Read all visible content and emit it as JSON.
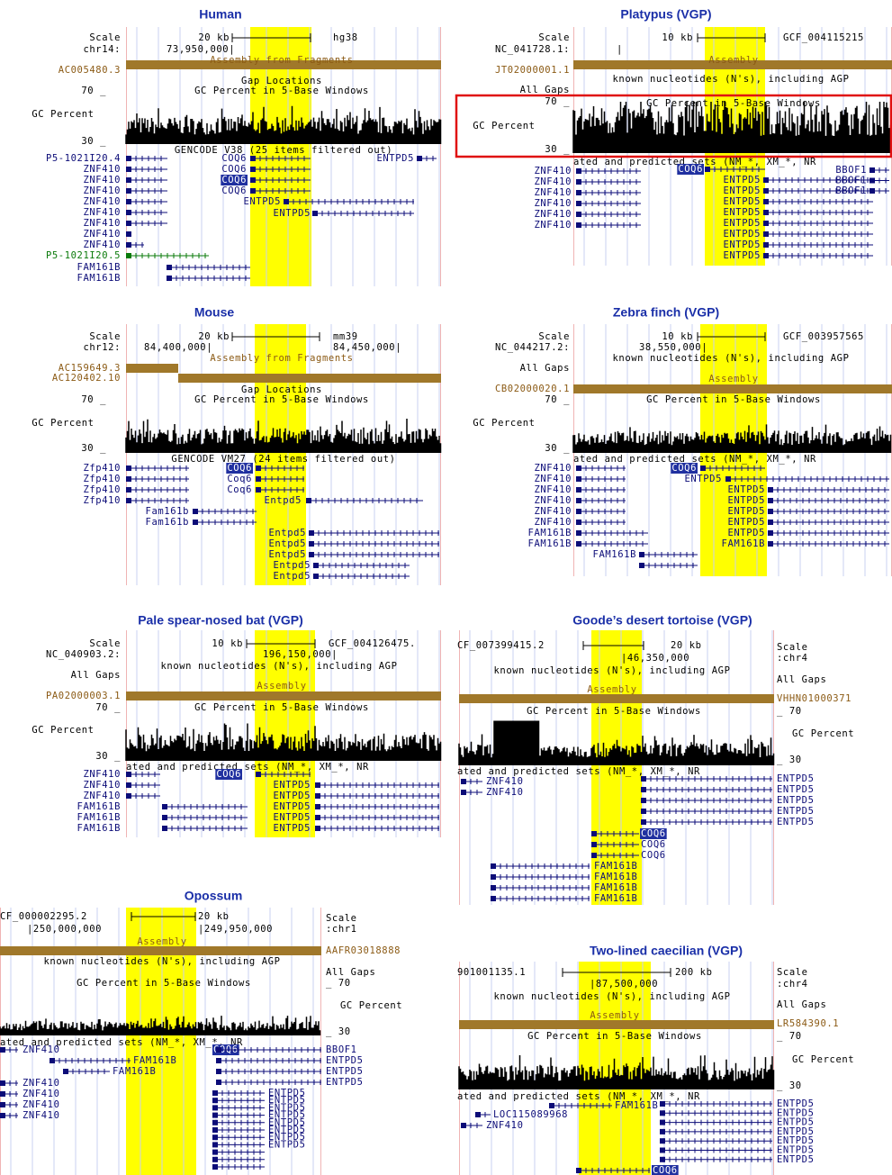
{
  "panels": [
    {
      "title": "Human",
      "texts": [
        "Scale",
        "chr14:",
        "20 kb",
        "hg38",
        "73,950,000|",
        "AC005480.3",
        "Assembly from Fragments",
        "Gap Locations",
        "GC Percent in 5-Base Windows",
        "70 _",
        "GC Percent",
        "30 _",
        "GENCODE V38 (25 items filtered out)",
        "P5-1021I20.4",
        "ZNF410",
        "ZNF410",
        "ZNF410",
        "ZNF410",
        "ZNF410",
        "ZNF410",
        "ZNF410",
        "ZNF410",
        "P5-1021I20.5",
        "FAM161B",
        "FAM161B",
        "COQ6",
        "COQ6",
        "COQ6",
        "COQ6",
        "ENTPD5",
        "ENTPD5",
        "ENTPD5"
      ]
    },
    {
      "title": "Platypus (VGP)",
      "texts": [
        "Scale",
        "NC_041728.1:",
        "10 kb",
        "GCF_004115215",
        "|",
        "JT02000001.1",
        "Assembly",
        "known nucleotides (N's), including AGP",
        "All Gaps",
        "70 _",
        "GC Percent in 5-Base Windows",
        "GC Percent",
        "30 _",
        "ated and predicted sets (NM_*, XM_*, NR",
        "ZNF410",
        "ZNF410",
        "ZNF410",
        "ZNF410",
        "ZNF410",
        "ZNF410",
        "COQ6",
        "ENTPD5",
        "ENTPD5",
        "ENTPD5",
        "ENTPD5",
        "ENTPD5",
        "ENTPD5",
        "ENTPD5",
        "ENTPD5",
        "BBOF1",
        "BBOF1",
        "BBOF1"
      ]
    },
    {
      "title": "Mouse",
      "texts": [
        "Scale",
        "chr12:",
        "20 kb",
        "mm39",
        "84,400,000|",
        "84,450,000|",
        "AC159649.3",
        "AC120402.10",
        "Assembly from Fragments",
        "Gap Locations",
        "GC Percent in 5-Base Windows",
        "70 _",
        "GC Percent",
        "30 _",
        "GENCODE VM27 (24 items filtered out)",
        "Zfp410",
        "Zfp410",
        "Zfp410",
        "Zfp410",
        "COQ6",
        "Coq6",
        "Coq6",
        "Fam161b",
        "Fam161b",
        "Entpd5",
        "Entpd5",
        "Entpd5",
        "Entpd5",
        "Entpd5",
        "Entpd5"
      ]
    },
    {
      "title": "Zebra finch (VGP)",
      "texts": [
        "Scale",
        "NC_044217.2:",
        "10 kb",
        "GCF_003957565",
        "38,550,000|",
        "known nucleotides (N's), including AGP",
        "All Gaps",
        "Assembly",
        "CB02000020.1",
        "70 _",
        "GC Percent in 5-Base Windows",
        "GC Percent",
        "30 _",
        "ated and predicted sets (NM_*, XM_*, NR",
        "ZNF410",
        "ZNF410",
        "ZNF410",
        "ZNF410",
        "ZNF410",
        "ZNF410",
        "FAM161B",
        "FAM161B",
        "COQ6",
        "ENTPD5",
        "ENTPD5",
        "ENTPD5",
        "ENTPD5",
        "ENTPD5",
        "ENTPD5",
        "FAM161B",
        "FAM161B"
      ]
    },
    {
      "title": "Pale spear-nosed bat (VGP)",
      "texts": [
        "Scale",
        "NC_040903.2:",
        "10 kb",
        "GCF_004126475.",
        "196,150,000|",
        "known nucleotides (N's), including AGP",
        "All Gaps",
        "Assembly",
        "PA02000003.1",
        "70 _",
        "GC Percent in 5-Base Windows",
        "GC Percent",
        "30 _",
        "ated and predicted sets (NM_*, XM_*, NR",
        "ZNF410",
        "ZNF410",
        "ZNF410",
        "FAM161B",
        "FAM161B",
        "FAM161B",
        "COQ6",
        "ENTPD5",
        "ENTPD5",
        "ENTPD5",
        "ENTPD5",
        "ENTPD5"
      ]
    },
    {
      "title": "Goode’s desert tortoise (VGP)",
      "texts": [
        "CF_007399415.2",
        "20 kb",
        "|46,350,000",
        "known nucleotides (N's), including AGP",
        "Assembly",
        "GC Percent in 5-Base Windows",
        "Scale",
        ":chr4",
        "All Gaps",
        "VHHN01000371",
        "_ 70",
        "GC Percent",
        "_ 30",
        "ated and predicted sets (NM_*, XM_*, NR",
        "ZNF410",
        "ZNF410",
        "ENTPD5",
        "ENTPD5",
        "ENTPD5",
        "ENTPD5",
        "ENTPD5",
        "COQ6",
        "COQ6",
        "COQ6",
        "FAM161B",
        "FAM161B",
        "FAM161B",
        "FAM161B"
      ]
    },
    {
      "title": "Opossum",
      "texts": [
        "CF_000002295.2",
        "20 kb",
        "|250,000,000",
        "|249,950,000",
        "Assembly",
        "known nucleotides (N's), including AGP",
        "GC Percent in 5-Base Windows",
        "Scale",
        ":chr1",
        "AAFR03018888",
        "All Gaps",
        "_ 70",
        "GC Percent",
        "_ 30",
        "ated and predicted sets (NM_*, XM_*, NR",
        "ZNF410",
        "FAM161B",
        "FAM161B",
        "ZNF410",
        "ZNF410",
        "ZNF410",
        "ZNF410",
        "COQ6",
        "BBOF1",
        "ENTPD5",
        "ENTPD5",
        "ENTPD5",
        "ENTPD5",
        "ENTPD5",
        "ENTPD5",
        "ENTPD5",
        "ENTPD5",
        "ENTPD5",
        "ENTPD5",
        "ENTPD5"
      ]
    },
    {
      "title": "Two-lined caecilian (VGP)",
      "texts": [
        "901001135.1",
        "200 kb",
        "|87,500,000",
        "known nucleotides (N's), including AGP",
        "Assembly",
        "GC Percent in 5-Base Windows",
        "Scale",
        ":chr4",
        "All Gaps",
        "LR584390.1",
        "_ 70",
        "GC Percent",
        "_ 30",
        "ated and predicted sets (NM_*, XM_*, NR",
        "FAM161B",
        "LOC115089968",
        "ZNF410",
        "ENTPD5",
        "ENTPD5",
        "ENTPD5",
        "ENTPD5",
        "ENTPD5",
        "ENTPD5",
        "ENTPD5",
        "COQ6"
      ]
    }
  ]
}
